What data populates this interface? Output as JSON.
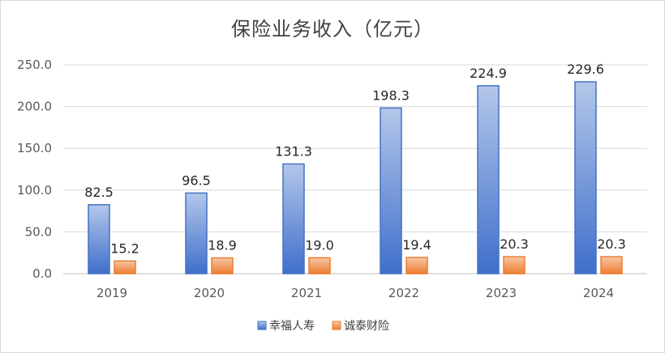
{
  "chart_data": {
    "type": "bar",
    "title": "保险业务收入（亿元）",
    "categories": [
      "2019",
      "2020",
      "2021",
      "2022",
      "2023",
      "2024"
    ],
    "series": [
      {
        "name": "幸福人寿",
        "values": [
          82.5,
          96.5,
          131.3,
          198.3,
          224.9,
          229.6
        ],
        "value_labels": [
          "82.5",
          "96.5",
          "131.3",
          "198.3",
          "224.9",
          "229.6"
        ],
        "color": "#4472c4"
      },
      {
        "name": "诚泰财险",
        "values": [
          15.2,
          18.9,
          19.0,
          19.4,
          20.3,
          20.3
        ],
        "value_labels": [
          "15.2",
          "18.9",
          "19.0",
          "19.4",
          "20.3",
          "20.3"
        ],
        "color": "#ed7d31"
      }
    ],
    "ylim": [
      0,
      250
    ],
    "yticks": [
      0,
      50,
      100,
      150,
      200,
      250
    ],
    "ytick_labels": [
      "0.0",
      "50.0",
      "100.0",
      "150.0",
      "200.0",
      "250.0"
    ],
    "grid": true,
    "legend_position": "bottom"
  }
}
